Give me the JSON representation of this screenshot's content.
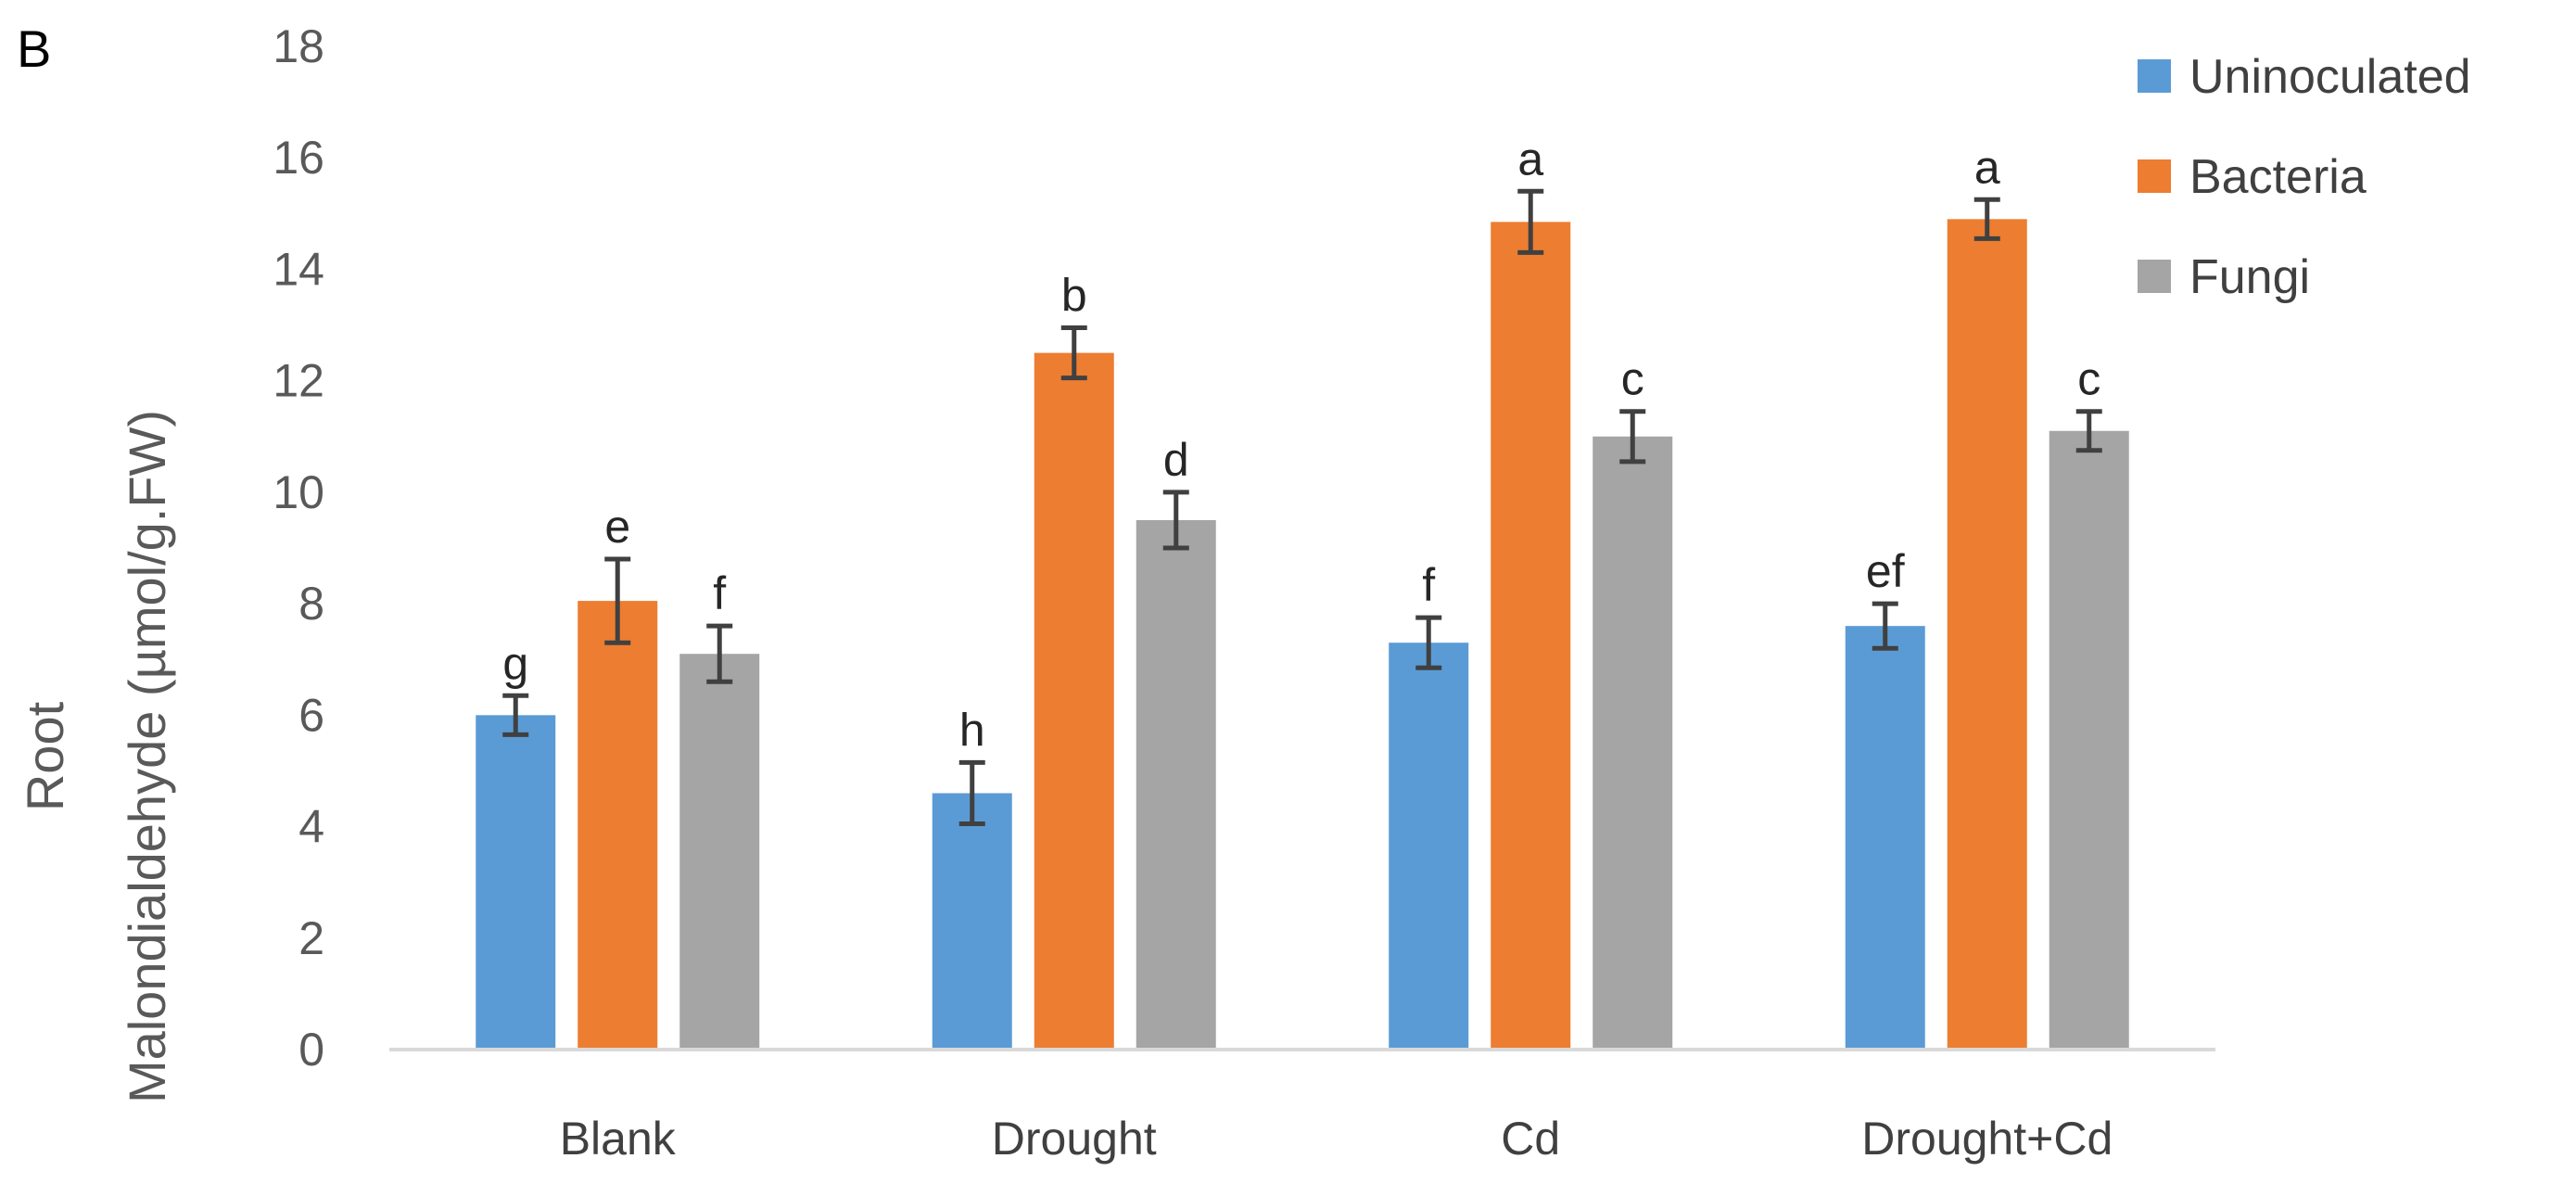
{
  "panel_label": "B",
  "chart_data": {
    "type": "bar",
    "title": "",
    "xlabel": "",
    "ylabel_lines": [
      "Root",
      "Malondialdehyde (µmol/g.FW)"
    ],
    "ylim": [
      0,
      18
    ],
    "yticks": [
      0,
      2,
      4,
      6,
      8,
      10,
      12,
      14,
      16,
      18
    ],
    "categories": [
      "Blank",
      "Drought",
      "Cd",
      "Drought+Cd"
    ],
    "legend_position": "top-right",
    "series": [
      {
        "name": "Uninoculated",
        "color": "#5B9BD5",
        "values": [
          6.0,
          4.6,
          7.3,
          7.6
        ],
        "errors": [
          0.35,
          0.55,
          0.45,
          0.4
        ],
        "letters": [
          "g",
          "h",
          "f",
          "ef"
        ]
      },
      {
        "name": "Bacteria",
        "color": "#ED7D31",
        "values": [
          8.05,
          12.5,
          14.85,
          14.9
        ],
        "errors": [
          0.75,
          0.45,
          0.55,
          0.35
        ],
        "letters": [
          "e",
          "b",
          "a",
          "a"
        ]
      },
      {
        "name": "Fungi",
        "color": "#A5A5A5",
        "values": [
          7.1,
          9.5,
          11.0,
          11.1
        ],
        "errors": [
          0.5,
          0.5,
          0.45,
          0.35
        ],
        "letters": [
          "f",
          "d",
          "c",
          "c"
        ]
      }
    ]
  },
  "colors": {
    "axis": "#D9D9D9",
    "error_bar": "#404040"
  }
}
